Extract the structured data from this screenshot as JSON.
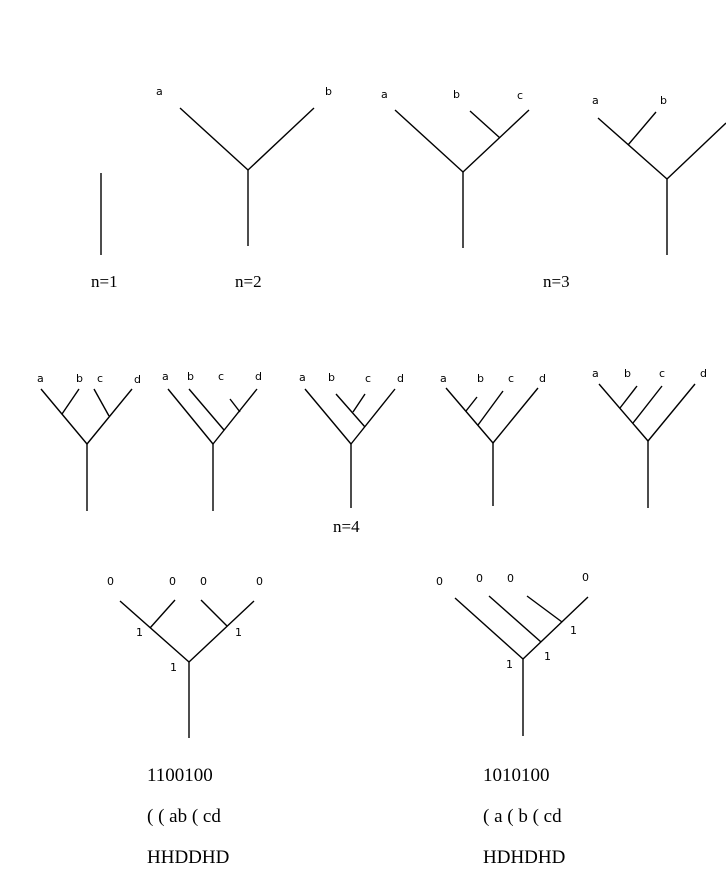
{
  "captions": {
    "n1": "n=1",
    "n2": "n=2",
    "n3": "n=3",
    "n4": "n=4"
  },
  "leaves": {
    "a": "a",
    "b": "b",
    "c": "c",
    "d": "d"
  },
  "bits": {
    "zero": "0",
    "one": "1"
  },
  "encodings": {
    "left": {
      "binary": "1100100",
      "parens": "( ( ab ( cd",
      "hd": "HHDDHD"
    },
    "right": {
      "binary": "1010100",
      "parens": "( a ( b ( cd",
      "hd": "HDHDHD"
    }
  }
}
